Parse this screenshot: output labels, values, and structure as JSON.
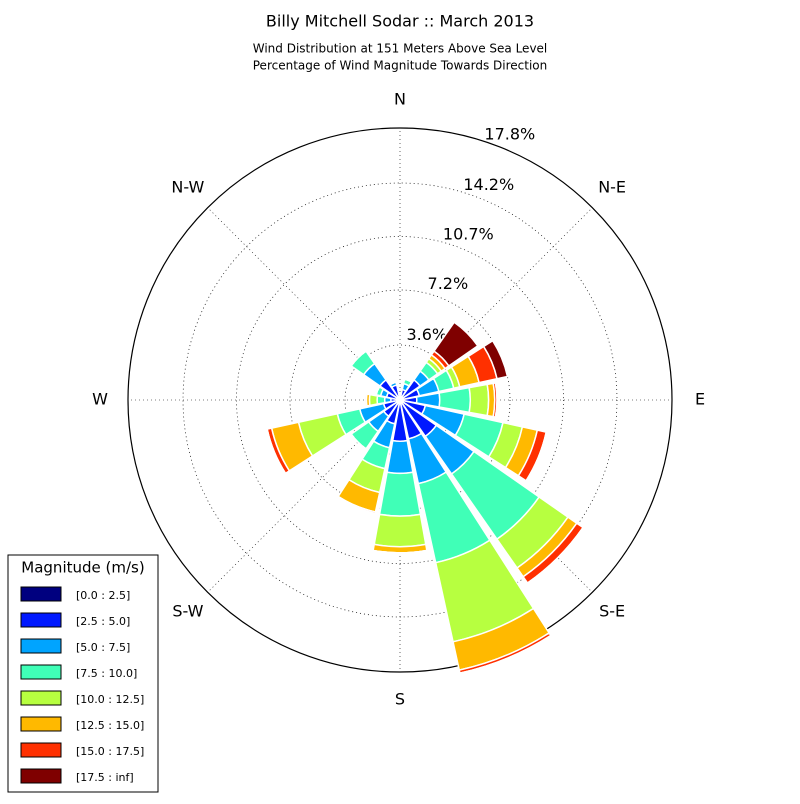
{
  "chart_data": {
    "type": "windrose",
    "title": "Billy Mitchell Sodar :: March 2013",
    "subtitle": [
      "Wind Distribution at 151 Meters Above Sea Level",
      "Percentage of Wind Magnitude Towards Direction"
    ],
    "categories": [
      "N",
      null,
      "N-E",
      null,
      "E",
      null,
      "S-E",
      null,
      "S",
      null,
      "S-W",
      null,
      "W",
      null,
      "N-W",
      null
    ],
    "ylim": [
      0,
      17.8
    ],
    "yticks": [
      {
        "value": 3.6,
        "label": "3.6%"
      },
      {
        "value": 7.2,
        "label": "7.2%"
      },
      {
        "value": 10.7,
        "label": "10.7%"
      },
      {
        "value": 14.2,
        "label": "14.2%"
      },
      {
        "value": 17.8,
        "label": "17.8%"
      }
    ],
    "grid": true,
    "legend_title": "Magnitude (m/s)",
    "legend_position": "lower left",
    "series": [
      {
        "name": "[0.0 : 2.5]",
        "color": "#00007f",
        "values": [
          0.1,
          0.1,
          0.1,
          0.1,
          0.1,
          0.1,
          0.1,
          0.1,
          0.1,
          0.1,
          0.1,
          0.1,
          0.1,
          0.1,
          0.1,
          0.1
        ]
      },
      {
        "name": "[2.5 : 5.0]",
        "color": "#0019ff",
        "values": [
          0.3,
          0.6,
          1.5,
          1.2,
          1.0,
          1.6,
          2.8,
          2.5,
          2.6,
          1.5,
          1.2,
          1.0,
          0.5,
          0.8,
          1.5,
          0.9
        ]
      },
      {
        "name": "[5.0 : 7.5]",
        "color": "#00a4ff",
        "values": [
          0,
          0.4,
          0.7,
          1.3,
          1.5,
          2.6,
          3.0,
          3.0,
          2.1,
          1.6,
          1.2,
          1.6,
          0.4,
          0.4,
          1.3,
          0.2
        ]
      },
      {
        "name": "[7.5 : 10.0]",
        "color": "#40ffb7",
        "values": [
          0,
          0.3,
          0.7,
          1.0,
          2.0,
          2.6,
          5.2,
          5.3,
          2.8,
          1.4,
          1.4,
          1.5,
          0.5,
          0.3,
          1.0,
          0
        ]
      },
      {
        "name": "[10.0 : 12.5]",
        "color": "#b7ff40",
        "values": [
          0,
          0,
          0.3,
          0.4,
          1.2,
          1.3,
          2.3,
          5.3,
          2.0,
          1.6,
          0,
          2.6,
          0.5,
          0,
          0,
          0
        ]
      },
      {
        "name": "[12.5 : 15.0]",
        "color": "#ffb900",
        "values": [
          0,
          0,
          0.3,
          1.3,
          0.4,
          1.0,
          0.7,
          1.9,
          0.4,
          1.3,
          0,
          1.8,
          0.2,
          0,
          0,
          0
        ]
      },
      {
        "name": "[15.0 : 17.5]",
        "color": "#ff3000",
        "values": [
          0,
          0,
          0.3,
          1.2,
          0.15,
          0.6,
          0.5,
          0.2,
          0,
          0.1,
          0,
          0.3,
          0.1,
          0,
          0,
          0
        ]
      },
      {
        "name": "[17.5 : inf]",
        "color": "#7f0000",
        "values": [
          0,
          0,
          2.3,
          0.7,
          0,
          0,
          0,
          0,
          0,
          0,
          0,
          0,
          0,
          0,
          0,
          0
        ]
      }
    ]
  }
}
